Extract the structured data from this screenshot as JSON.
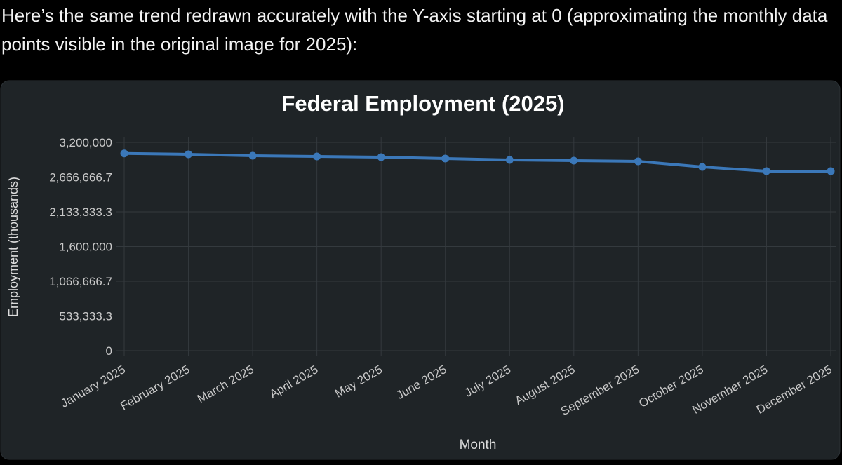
{
  "message": "Here’s the same trend redrawn accurately with the Y-axis starting at 0 (approximating the monthly data points visible in the original image for 2025):",
  "chart_data": {
    "type": "line",
    "title": "Federal Employment (2025)",
    "x_label": "Month",
    "y_label": "Employment (thousands)",
    "categories": [
      "January 2025",
      "February 2025",
      "March 2025",
      "April 2025",
      "May 2025",
      "June 2025",
      "July 2025",
      "August 2025",
      "September 2025",
      "October 2025",
      "November 2025",
      "December 2025"
    ],
    "series": [
      {
        "name": "Federal Employment",
        "color": "#3b78b9",
        "values": [
          3030000,
          3017000,
          2995000,
          2985000,
          2974000,
          2952000,
          2931000,
          2920000,
          2909000,
          2823000,
          2758000,
          2758000
        ]
      }
    ],
    "ylim": [
      0,
      3200000
    ],
    "yticks": [
      0,
      {
        "value": 533333.3,
        "label": "533,333.3"
      },
      {
        "value": 1066666.7,
        "label": "1,066,666.7"
      },
      {
        "value": 1600000,
        "label": "1,600,000"
      },
      {
        "value": 2133333.3,
        "label": "2,133,333.3"
      },
      {
        "value": 2666666.7,
        "label": "2,666,666.7"
      },
      {
        "value": 3200000,
        "label": "3,200,000"
      }
    ],
    "grid": true
  }
}
